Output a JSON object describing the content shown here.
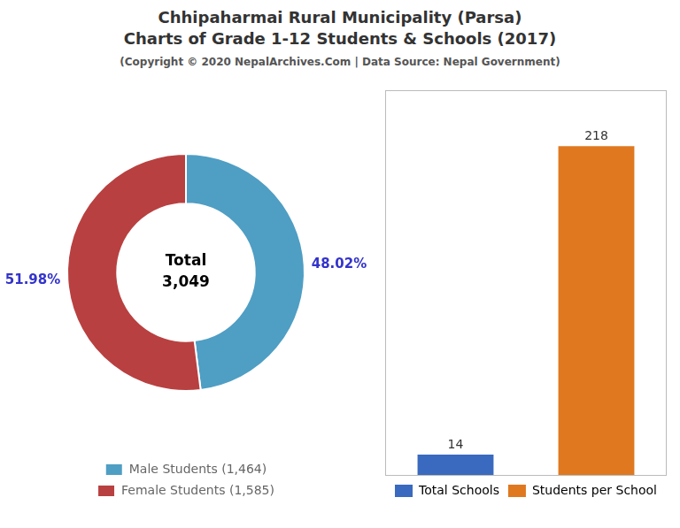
{
  "chart_data": [
    {
      "type": "doughnut",
      "title": [
        "Chhipaharmai Rural Municipality (Parsa)",
        "Charts of Grade 1-12 Students & Schools (2017)"
      ],
      "subtitle": "(Copyright © 2020 NepalArchives.Com | Data Source: Nepal Government)",
      "categories": [
        "Male Students (1,464)",
        "Female Students (1,585)"
      ],
      "values": [
        48.02,
        51.98
      ],
      "value_labels": [
        "48.02%",
        "51.98%"
      ],
      "data_labels": true,
      "colors": [
        "#4f9ec4",
        "#b94040"
      ],
      "annotations": [
        "Total",
        "3,049"
      ],
      "legend": "bottom"
    },
    {
      "type": "bar",
      "categories": [
        "Total Schools",
        "Students per School"
      ],
      "values": [
        14,
        218
      ],
      "colors": [
        "#3a6abf",
        "#e07820"
      ],
      "ylim": [
        0,
        255
      ],
      "data_labels": true,
      "tick_labels": false,
      "grid": false,
      "legend": "bottom"
    }
  ]
}
